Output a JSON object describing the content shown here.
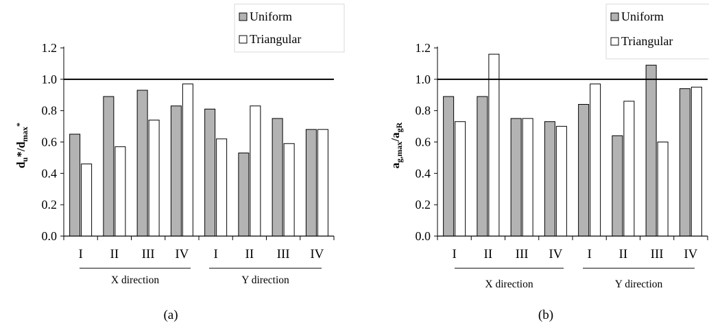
{
  "chart_data": [
    {
      "type": "bar",
      "caption": "(a)",
      "ylabel": {
        "parts": [
          [
            "d",
            ""
          ],
          [
            "u",
            "sub"
          ],
          [
            "*/d",
            ""
          ],
          [
            "max",
            "sub"
          ],
          [
            "*",
            "sup"
          ]
        ]
      },
      "ylim": [
        0,
        1.2
      ],
      "yticks": [
        "0.0",
        "0.2",
        "0.4",
        "0.6",
        "0.8",
        "1.0",
        "1.2"
      ],
      "reference_line": 1.0,
      "categories": [
        "I",
        "II",
        "III",
        "IV",
        "I",
        "II",
        "III",
        "IV"
      ],
      "groups": [
        {
          "label": "X direction"
        },
        {
          "label": "Y direction"
        }
      ],
      "legend_position": "top-right",
      "series": [
        {
          "name": "Uniform",
          "color": "#b3b3b3",
          "values": [
            0.65,
            0.89,
            0.93,
            0.83,
            0.81,
            0.53,
            0.75,
            0.68
          ]
        },
        {
          "name": "Triangular",
          "color": "#ffffff",
          "values": [
            0.46,
            0.57,
            0.74,
            0.97,
            0.62,
            0.83,
            0.59,
            0.68
          ]
        }
      ]
    },
    {
      "type": "bar",
      "caption": "(b)",
      "ylabel": {
        "parts": [
          [
            "a",
            ""
          ],
          [
            "g,max",
            "sub"
          ],
          [
            "/a",
            ""
          ],
          [
            "gR",
            "sub"
          ]
        ]
      },
      "ylim": [
        0,
        1.2
      ],
      "yticks": [
        "0.0",
        "0.2",
        "0.4",
        "0.6",
        "0.8",
        "1.0",
        "1.2"
      ],
      "reference_line": 1.0,
      "categories": [
        "I",
        "II",
        "III",
        "IV",
        "I",
        "II",
        "III",
        "IV"
      ],
      "groups": [
        {
          "label": "X direction"
        },
        {
          "label": "Y direction"
        }
      ],
      "legend_position": "top-right",
      "series": [
        {
          "name": "Uniform",
          "color": "#b3b3b3",
          "values": [
            0.89,
            0.89,
            0.75,
            0.73,
            0.84,
            0.64,
            1.09,
            0.94
          ]
        },
        {
          "name": "Triangular",
          "color": "#ffffff",
          "values": [
            0.73,
            1.16,
            0.75,
            0.7,
            0.97,
            0.86,
            0.6,
            0.95
          ]
        }
      ]
    }
  ]
}
